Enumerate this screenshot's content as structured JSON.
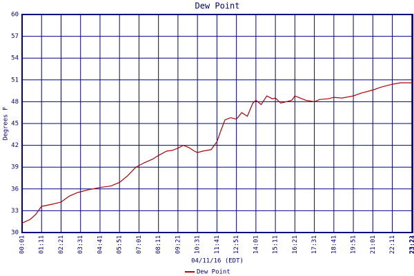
{
  "chart_data": {
    "type": "line",
    "title": "Dew Point",
    "x_label": "04/11/16 (EDT)",
    "y_label": "Degrees F",
    "x": [
      "00:01",
      "00:30",
      "00:50",
      "01:05",
      "01:11",
      "01:50",
      "02:21",
      "02:50",
      "03:20",
      "03:31",
      "04:00",
      "04:41",
      "05:20",
      "05:51",
      "06:20",
      "06:50",
      "07:20",
      "07:50",
      "08:11",
      "08:40",
      "09:00",
      "09:21",
      "09:40",
      "10:00",
      "10:20",
      "10:31",
      "10:50",
      "11:20",
      "11:41",
      "11:55",
      "12:10",
      "12:30",
      "12:51",
      "13:10",
      "13:30",
      "13:50",
      "14:01",
      "14:20",
      "14:40",
      "15:00",
      "15:11",
      "15:30",
      "15:50",
      "16:10",
      "16:21",
      "16:40",
      "17:00",
      "17:31",
      "17:50",
      "18:20",
      "18:41",
      "19:10",
      "19:51",
      "20:20",
      "21:01",
      "21:30",
      "22:11",
      "22:40",
      "23:00",
      "23:24"
    ],
    "series": [
      {
        "name": "Dew Point",
        "color": "#aa0000",
        "values": [
          31.3,
          31.8,
          32.5,
          33.3,
          33.6,
          33.9,
          34.2,
          35.0,
          35.5,
          35.6,
          35.9,
          36.2,
          36.4,
          36.9,
          37.8,
          39.0,
          39.6,
          40.1,
          40.6,
          41.2,
          41.3,
          41.6,
          42.0,
          41.7,
          41.2,
          41.0,
          41.2,
          41.4,
          42.5,
          44.0,
          45.5,
          45.8,
          45.6,
          46.5,
          46.0,
          47.8,
          48.2,
          47.6,
          48.8,
          48.4,
          48.5,
          47.8,
          48.0,
          48.2,
          48.8,
          48.5,
          48.2,
          48.0,
          48.3,
          48.4,
          48.6,
          48.5,
          48.8,
          49.2,
          49.6,
          50.0,
          50.4,
          50.6,
          50.6,
          50.6
        ]
      }
    ],
    "xlim": [
      "00:01",
      "23:24"
    ],
    "xticks": [
      "00:01",
      "01:11",
      "02:21",
      "03:31",
      "04:41",
      "05:51",
      "07:01",
      "08:11",
      "09:21",
      "10:31",
      "11:41",
      "12:51",
      "14:01",
      "15:11",
      "16:21",
      "17:31",
      "18:41",
      "19:51",
      "21:01",
      "22:11",
      "23:21",
      "23:24"
    ],
    "ylim": [
      30,
      60
    ],
    "yticks": [
      30,
      33,
      36,
      39,
      42,
      45,
      48,
      51,
      54,
      57,
      60
    ],
    "grid": true
  }
}
